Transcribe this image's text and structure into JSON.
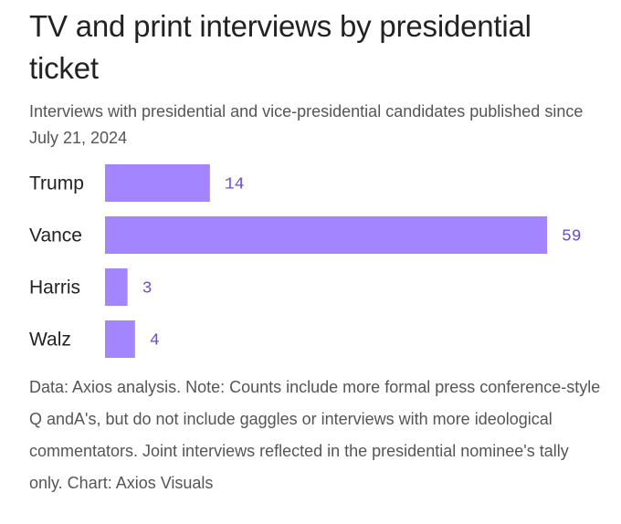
{
  "title": "TV and print interviews by presidential ticket",
  "subtitle": "Interviews with presidential and vice-presidential candidates published since July 21, 2024",
  "note": "Data: Axios analysis. Note: Counts include more formal press conference-style Q andA's, but do not include gaggles or interviews with more ideological commentators. Joint interviews reflected in the presidential nominee's tally only. Chart: Axios Visuals",
  "colors": {
    "bar": "#a385ff",
    "value_label": "#6b4bd6"
  },
  "chart_data": {
    "type": "bar",
    "orientation": "horizontal",
    "title": "TV and print interviews by presidential ticket",
    "categories": [
      "Trump",
      "Vance",
      "Harris",
      "Walz"
    ],
    "values": [
      14,
      59,
      3,
      4
    ],
    "xlabel": "",
    "ylabel": "",
    "grid": false
  }
}
